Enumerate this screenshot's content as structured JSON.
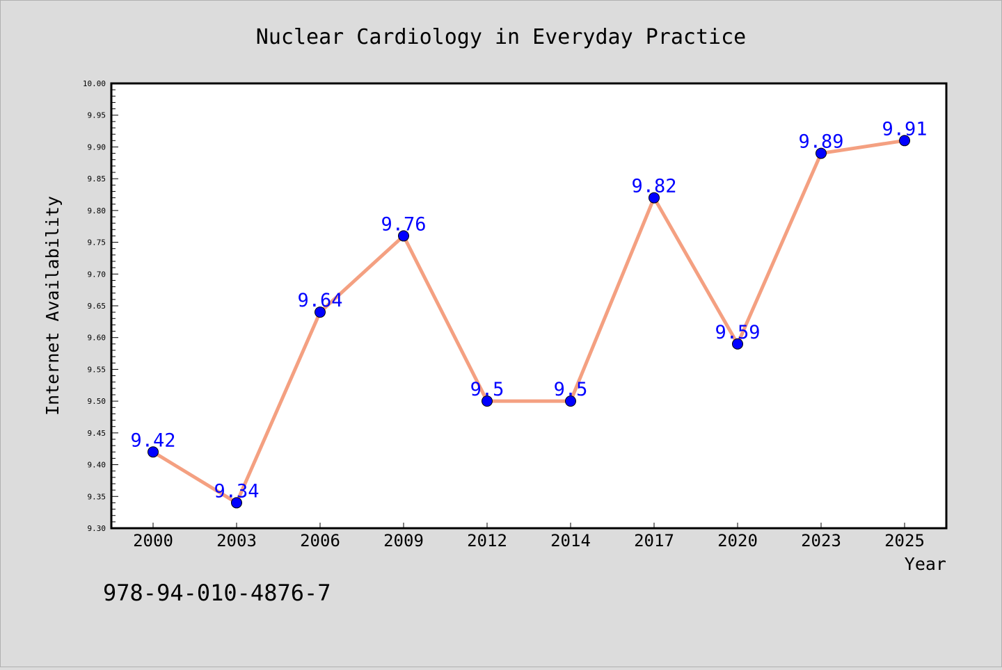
{
  "chart_data": {
    "type": "line",
    "title": "Nuclear Cardiology in Everyday Practice",
    "xlabel": "Year",
    "ylabel": "Internet Availability",
    "categories": [
      "2000",
      "2003",
      "2006",
      "2009",
      "2012",
      "2014",
      "2017",
      "2020",
      "2023",
      "2025"
    ],
    "series": [
      {
        "values": [
          9.42,
          9.34,
          9.64,
          9.76,
          9.5,
          9.5,
          9.82,
          9.59,
          9.89,
          9.91
        ],
        "data_labels": [
          "9.42",
          "9.34",
          "9.64",
          "9.76",
          "9.5",
          "9.5",
          "9.82",
          "9.59",
          "9.89",
          "9.91"
        ]
      }
    ],
    "ylim": [
      9.3,
      10.0
    ],
    "yticks": [
      "9.30",
      "9.35",
      "9.40",
      "9.45",
      "9.50",
      "9.55",
      "9.60",
      "9.65",
      "9.70",
      "9.75",
      "9.80",
      "9.85",
      "9.90",
      "9.95",
      "10.00"
    ],
    "grid": false,
    "colors": {
      "background": "#dcdcdc",
      "plot_background": "#ffffff",
      "line": "#f4a081",
      "marker": "#0000ff",
      "data_label": "#0000ff",
      "text": "#000000"
    }
  },
  "footer": {
    "isbn": "978-94-010-4876-7"
  }
}
